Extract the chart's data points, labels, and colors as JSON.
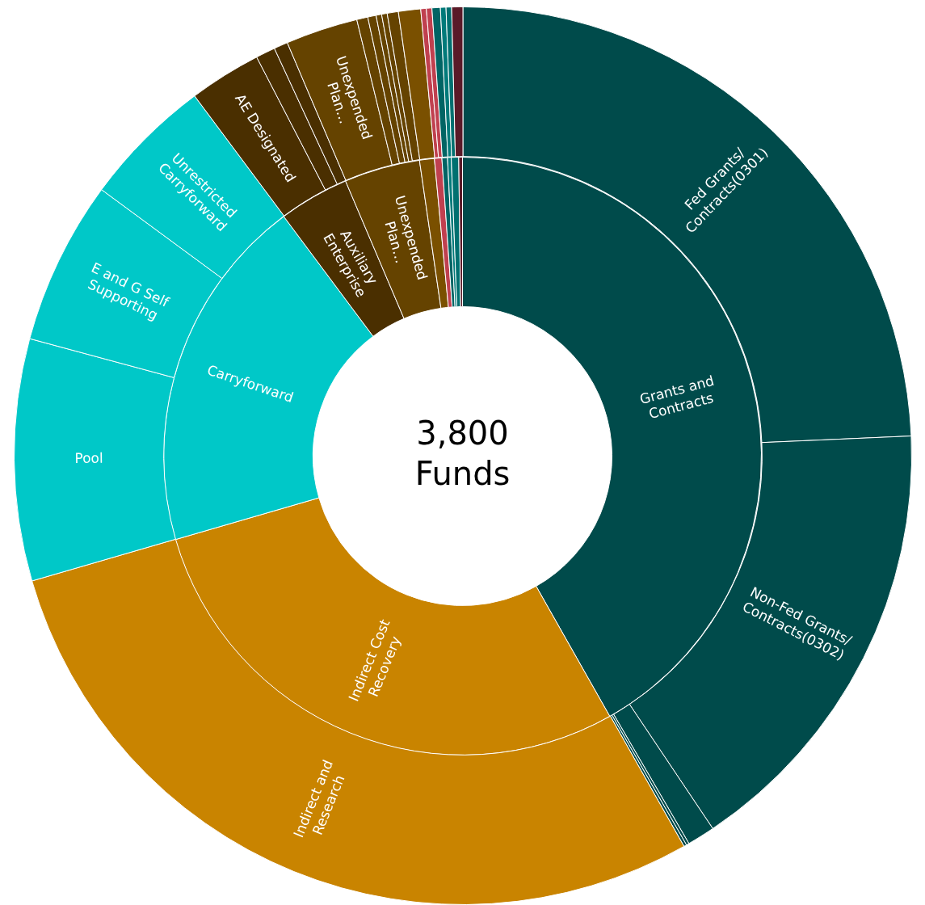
{
  "chart_data": [
    {
      "type": "donut",
      "annotations": [
        "3,800 Funds"
      ],
      "categories": [
        "Grants and Contracts",
        "Indirect Cost Recovery",
        "Carryforward",
        "Auxiliary Enterprise",
        "Unexpended Plan…",
        null,
        null,
        null,
        null,
        null,
        null
      ],
      "values": [
        41.8,
        28.7,
        19.3,
        3.8,
        4.1,
        0.8,
        0.4,
        0.3,
        0.2,
        0.4,
        0.2
      ],
      "colors": [
        "#004b4b",
        "#c98400",
        "#00c8c8",
        "#4a2f00",
        "#654300",
        "#7a5000",
        "#c0404f",
        "#006464",
        "#007a7a",
        "#007070",
        "#5a1a28"
      ]
    },
    {
      "type": "donut",
      "categories": [
        "Fed Grants/Contracts(0301)",
        "Non-Fed Grants/Contracts(0302)",
        null,
        null,
        null,
        "Indirect and Research",
        "Pool",
        "E and G Self Supporting",
        "Unrestricted Carryforward",
        "AE Designated",
        null,
        null,
        "Unexpended Plan…",
        null,
        null,
        null,
        null,
        null,
        null,
        null,
        null,
        null,
        null,
        null,
        null
      ],
      "values": [
        24.3,
        16.3,
        1.0,
        0.1,
        0.1,
        28.7,
        8.7,
        5.9,
        4.7,
        2.6,
        0.7,
        0.5,
        2.6,
        0.4,
        0.3,
        0.2,
        0.2,
        0.4,
        0.8,
        0.2,
        0.2,
        0.3,
        0.2,
        0.2,
        0.4
      ],
      "colors": [
        "#004b4b",
        "#004b4b",
        "#004b4b",
        "#004b4b",
        "#004b4b",
        "#c98400",
        "#00c8c8",
        "#00c8c8",
        "#00c8c8",
        "#4a2f00",
        "#4a2f00",
        "#4a2f00",
        "#654300",
        "#654300",
        "#654300",
        "#654300",
        "#654300",
        "#654300",
        "#7a5000",
        "#c0404f",
        "#c0404f",
        "#006464",
        "#007a7a",
        "#007070",
        "#5a1a28"
      ]
    }
  ]
}
